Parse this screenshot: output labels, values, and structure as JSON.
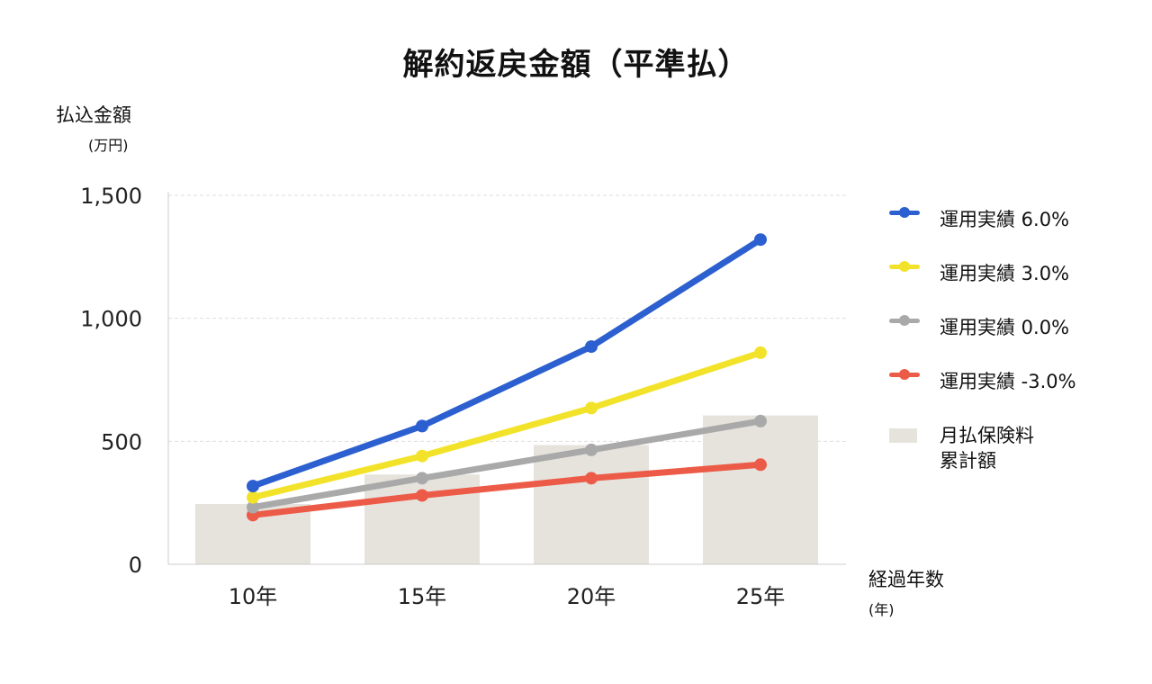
{
  "chart_data": {
    "type": "bar+line",
    "title": "解約返戻金額（平準払）",
    "ylabel": "払込金額",
    "yunit": "(万円)",
    "xlabel": "経過年数",
    "xunit": "(年)",
    "categories": [
      "10年",
      "15年",
      "20年",
      "25年"
    ],
    "ylim": [
      0,
      1500
    ],
    "yticks": [
      0,
      500,
      1000,
      1500
    ],
    "ytick_labels": [
      "0",
      "500",
      "1,000",
      "1,500"
    ],
    "grid": true,
    "legend_position": "right",
    "bars": {
      "name": "月払保険料\n累計額",
      "color": "#e6e3dd",
      "values": [
        245,
        365,
        485,
        605
      ]
    },
    "series": [
      {
        "name": "運用実績 6.0%",
        "color": "#2c5fcf",
        "values": [
          318,
          562,
          885,
          1320
        ]
      },
      {
        "name": "運用実績 3.0%",
        "color": "#f2e32a",
        "values": [
          272,
          440,
          635,
          860
        ]
      },
      {
        "name": "運用実績 0.0%",
        "color": "#a9a9a9",
        "values": [
          232,
          350,
          465,
          582
        ]
      },
      {
        "name": "運用実績 -3.0%",
        "color": "#ec5b47",
        "values": [
          200,
          280,
          350,
          405
        ]
      }
    ]
  }
}
